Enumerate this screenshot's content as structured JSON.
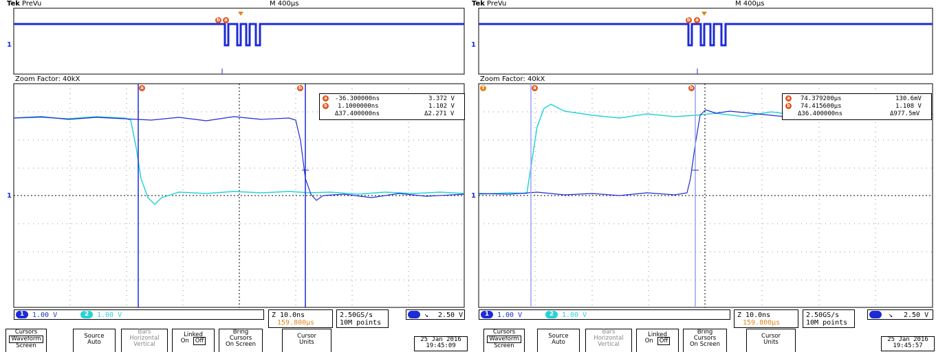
{
  "screens": [
    {
      "brand": "Tek",
      "mode": "PreVu",
      "timebase": "M 400µs",
      "zoom_factor": "Zoom Factor: 40kX",
      "cursor_a_label": "a",
      "cursor_b_label": "b",
      "readout": {
        "a_time": "-36.300000ns",
        "a_volt": "3.372 V",
        "b_time": "1.1000000ns",
        "b_volt": "1.102 V",
        "delta_time": "Δ37.400000ns",
        "delta_volt": "Δ2.271 V"
      },
      "ch1": "1.00 V",
      "ch2": "1.00 V",
      "ch1_num": "1",
      "ch2_num": "2",
      "zoom_time": "Z 10.0ns",
      "trigger_pos": "159.800µs",
      "sample_rate": "2.50GS/s",
      "record_length": "10M points",
      "trigger_level": "2.50 V",
      "date": "25 Jan 2016",
      "time": "19:45:09",
      "softkeys": {
        "cursors_top": "Cursors",
        "cursors_sel": "Waveform",
        "cursors_bottom": "Screen",
        "source_top": "Source",
        "source_bottom": "Auto",
        "bars_top": "Bars",
        "bars_mid": "Horizontal",
        "bars_bottom": "Vertical",
        "linked_top": "Linked",
        "linked_on": "On",
        "linked_off": "Off",
        "bring_top": "Bring",
        "bring_mid": "Cursors",
        "bring_bottom": "On Screen",
        "units_top": "Cursor",
        "units_bottom": "Units"
      }
    },
    {
      "brand": "Tek",
      "mode": "PreVu",
      "timebase": "M 400µs",
      "zoom_factor": "Zoom Factor: 40kX",
      "cursor_a_label": "a",
      "cursor_b_label": "b",
      "readout": {
        "a_time": "74.379200µs",
        "a_volt": "130.6mV",
        "b_time": "74.415600µs",
        "b_volt": "1.108 V",
        "delta_time": "Δ36.400000ns",
        "delta_volt": "Δ977.5mV"
      },
      "ch1": "1.00 V",
      "ch2": "1.00 V",
      "ch1_num": "1",
      "ch2_num": "2",
      "zoom_time": "Z 10.0ns",
      "trigger_pos": "159.800µs",
      "sample_rate": "2.50GS/s",
      "record_length": "10M points",
      "trigger_level": "2.50 V",
      "date": "25 Jan 2016",
      "time": "19:45:57",
      "softkeys": {
        "cursors_top": "Cursors",
        "cursors_sel": "Waveform",
        "cursors_bottom": "Screen",
        "source_top": "Source",
        "source_bottom": "Auto",
        "bars_top": "Bars",
        "bars_mid": "Horizontal",
        "bars_bottom": "Vertical",
        "linked_top": "Linked",
        "linked_on": "On",
        "linked_off": "Off",
        "bring_top": "Bring",
        "bring_mid": "Cursors",
        "bring_bottom": "On Screen",
        "units_top": "Cursor",
        "units_bottom": "Units"
      }
    }
  ],
  "colors": {
    "ch1": "#1c2bd6",
    "ch2": "#25d3d8",
    "cursor_marker": "#e0541b",
    "trigger": "#e0851b"
  }
}
